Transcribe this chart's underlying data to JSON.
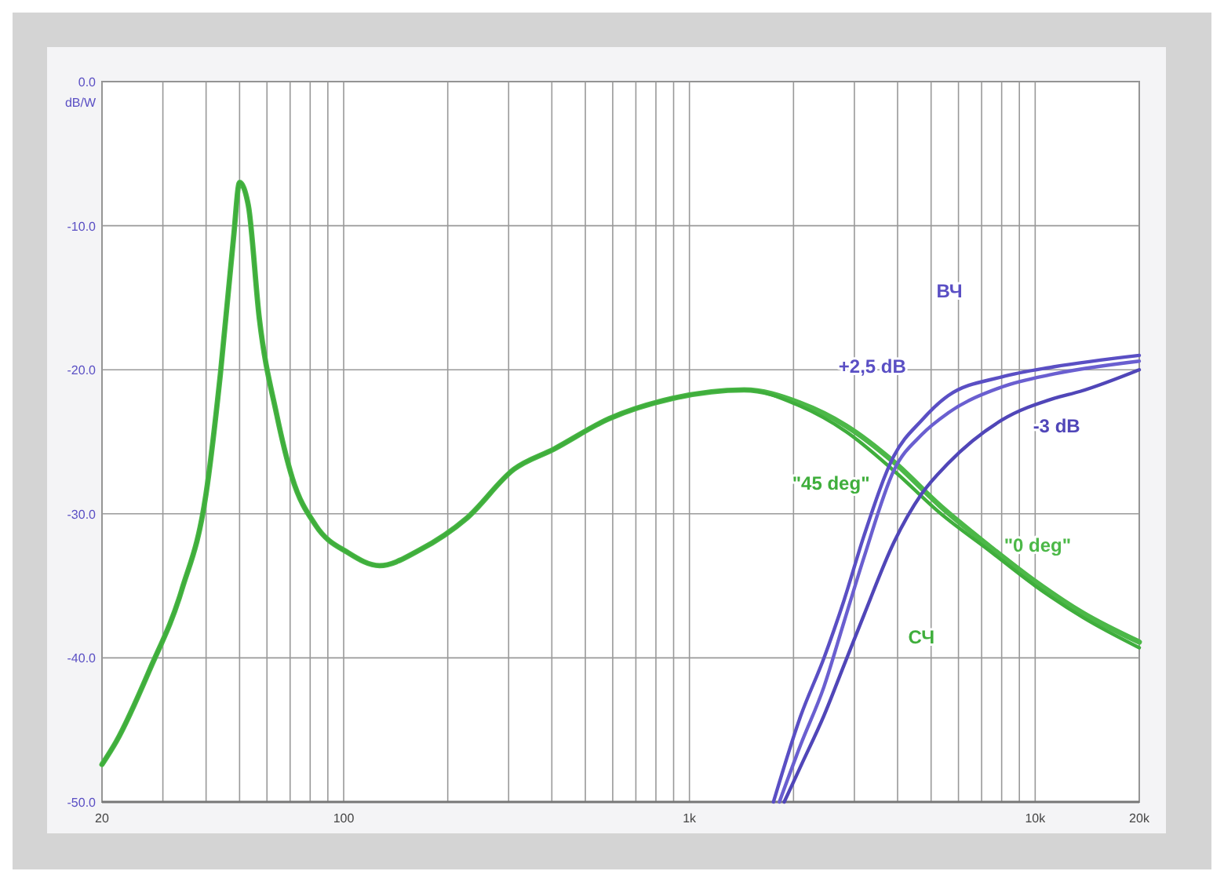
{
  "chart_data": {
    "type": "line",
    "ylabel": "dB/W",
    "log": "x",
    "grid": true,
    "xlim": [
      20,
      20000
    ],
    "ylim": [
      -50,
      0
    ],
    "xticks": [
      20,
      {
        "value": 30,
        "label": null
      },
      {
        "value": 40,
        "label": null
      },
      {
        "value": 50,
        "label": null
      },
      {
        "value": 60,
        "label": null
      },
      {
        "value": 70,
        "label": null
      },
      {
        "value": 80,
        "label": null
      },
      {
        "value": 90,
        "label": null
      },
      100,
      {
        "value": 200,
        "label": null
      },
      {
        "value": 300,
        "label": null
      },
      {
        "value": 400,
        "label": null
      },
      {
        "value": 500,
        "label": null
      },
      {
        "value": 600,
        "label": null
      },
      {
        "value": 700,
        "label": null
      },
      {
        "value": 800,
        "label": null
      },
      {
        "value": 900,
        "label": null
      },
      {
        "value": 1000,
        "label": "1k"
      },
      {
        "value": 2000,
        "label": null
      },
      {
        "value": 3000,
        "label": null
      },
      {
        "value": 4000,
        "label": null
      },
      {
        "value": 5000,
        "label": null
      },
      {
        "value": 6000,
        "label": null
      },
      {
        "value": 7000,
        "label": null
      },
      {
        "value": 8000,
        "label": null
      },
      {
        "value": 9000,
        "label": null
      },
      {
        "value": 10000,
        "label": "10k"
      },
      {
        "value": 20000,
        "label": "20k"
      }
    ],
    "yticks": [
      {
        "value": 0,
        "label": "0.0"
      },
      {
        "value": -10,
        "label": "-10.0"
      },
      {
        "value": -20,
        "label": "-20.0"
      },
      {
        "value": -30,
        "label": "-30.0"
      },
      {
        "value": -40,
        "label": "-40.0"
      },
      {
        "value": -50,
        "label": "-50.0"
      }
    ],
    "series": [
      {
        "name": "\"0 deg\"",
        "color": "#4cb848",
        "x": [
          20,
          22,
          27.5,
          34,
          40,
          44,
          48,
          50,
          53,
          57,
          64,
          71,
          83,
          103,
          127,
          166,
          227,
          311,
          406,
          585,
          890,
          1440,
          2080,
          2840,
          3900,
          5340,
          7320,
          10000,
          13750,
          20000
        ],
        "values": [
          -47.4,
          -45.8,
          -40.8,
          -35.3,
          -28.6,
          -20.3,
          -10.9,
          -7,
          -8.6,
          -16.4,
          -23.1,
          -27.5,
          -30.8,
          -32.7,
          -33.6,
          -32.5,
          -30.3,
          -26.9,
          -25.5,
          -23.4,
          -22,
          -21.4,
          -22.3,
          -23.9,
          -26.4,
          -29.5,
          -32.2,
          -34.7,
          -36.9,
          -38.9
        ]
      },
      {
        "name": "\"45 deg\"",
        "color": "#3fae3c",
        "x": [
          20,
          22,
          27.5,
          34,
          40,
          44,
          48,
          50,
          53,
          57,
          64,
          71,
          83,
          103,
          127,
          166,
          227,
          311,
          406,
          585,
          890,
          1440,
          2080,
          2840,
          3900,
          5340,
          7320,
          10000,
          13750,
          20000
        ],
        "values": [
          -47.4,
          -45.8,
          -40.8,
          -35.3,
          -28.6,
          -20.3,
          -10.9,
          -7,
          -8.6,
          -16.4,
          -23.1,
          -27.5,
          -30.8,
          -32.7,
          -33.6,
          -32.5,
          -30.3,
          -26.9,
          -25.5,
          -23.4,
          -22,
          -21.4,
          -22.5,
          -24.3,
          -27,
          -30,
          -32.5,
          -35,
          -37.2,
          -39.3
        ]
      },
      {
        "name": "+2,5 dB",
        "color": "#5a4fc4",
        "x": [
          1750,
          2100,
          2450,
          2800,
          3200,
          3900,
          4700,
          5600,
          8000,
          11300,
          20000
        ],
        "values": [
          -50,
          -44,
          -40,
          -36,
          -31.5,
          -26,
          -23.5,
          -21.8,
          -20.5,
          -19.8,
          -19
        ]
      },
      {
        "color": "#6a5fd0",
        "x": [
          1820,
          2100,
          2450,
          2800,
          3200,
          3900,
          4700,
          5600,
          8000,
          11300,
          20000
        ],
        "values": [
          -50,
          -46,
          -42,
          -37.5,
          -33,
          -27,
          -24.5,
          -23,
          -21.2,
          -20.3,
          -19.4
        ]
      },
      {
        "name": "-3 dB",
        "color": "#5046b8",
        "x": [
          1880,
          2100,
          2450,
          2800,
          3200,
          3900,
          4700,
          5600,
          8000,
          11300,
          13500,
          20000
        ],
        "values": [
          -50,
          -47.5,
          -44,
          -40.5,
          -37,
          -32,
          -28.6,
          -26.5,
          -23.5,
          -22,
          -21.5,
          -20
        ]
      }
    ],
    "annotations": [
      "ВЧ",
      "СЧ"
    ]
  }
}
